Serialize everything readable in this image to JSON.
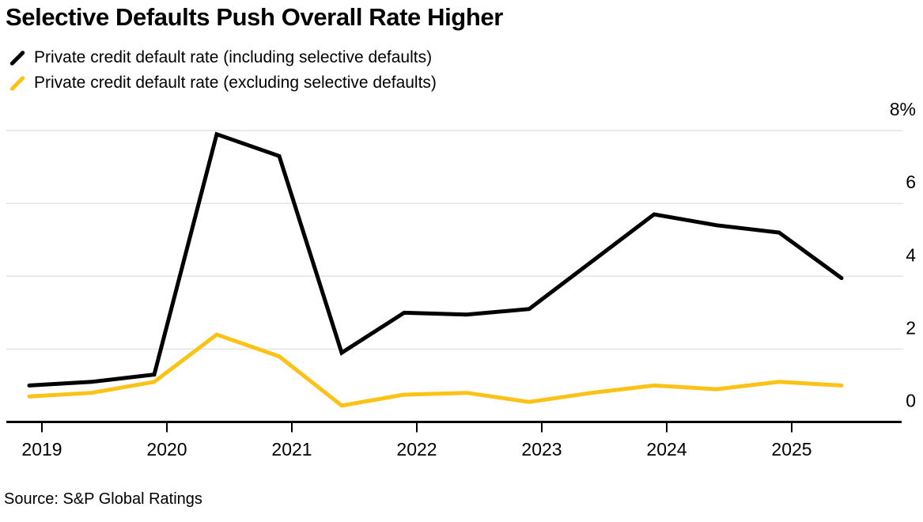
{
  "chart": {
    "title": "Selective Defaults Push Overall Rate Higher",
    "source": "Source: S&P Global Ratings"
  },
  "chart_data": {
    "type": "line",
    "title": "Selective Defaults Push Overall Rate Higher",
    "unit": "%",
    "grid": true,
    "legend_position": "top-left",
    "x_frequency": "semiannual",
    "categories": [
      "2018 H2",
      "2019 H1",
      "2019 H2",
      "2020 H1",
      "2020 H2",
      "2021 H1",
      "2021 H2",
      "2022 H1",
      "2022 H2",
      "2023 H1",
      "2023 H2",
      "2024 H1",
      "2024 H2",
      "2025 H1"
    ],
    "x_tick_labels": [
      "2019",
      "2020",
      "2021",
      "2022",
      "2023",
      "2024",
      "2025"
    ],
    "y_tick_labels": [
      "8%",
      "6",
      "4",
      "2",
      "0"
    ],
    "y_tick_values": [
      8,
      6,
      4,
      2,
      0
    ],
    "ylim": [
      0,
      8
    ],
    "series": [
      {
        "name": "Private credit default rate (including selective defaults)",
        "color": "#000000",
        "values": [
          1.0,
          1.1,
          1.3,
          7.9,
          7.3,
          1.9,
          3.0,
          2.95,
          3.1,
          4.4,
          5.7,
          5.4,
          5.2,
          3.95
        ]
      },
      {
        "name": "Private credit default rate (excluding selective defaults)",
        "color": "#FCC216",
        "values": [
          0.7,
          0.8,
          1.1,
          2.4,
          1.8,
          0.45,
          0.75,
          0.8,
          0.55,
          0.8,
          1.0,
          0.9,
          1.1,
          1.0
        ]
      }
    ],
    "grid_color": "#E4E4E4",
    "axis_color": "#000000",
    "source": "Source: S&P Global Ratings"
  }
}
